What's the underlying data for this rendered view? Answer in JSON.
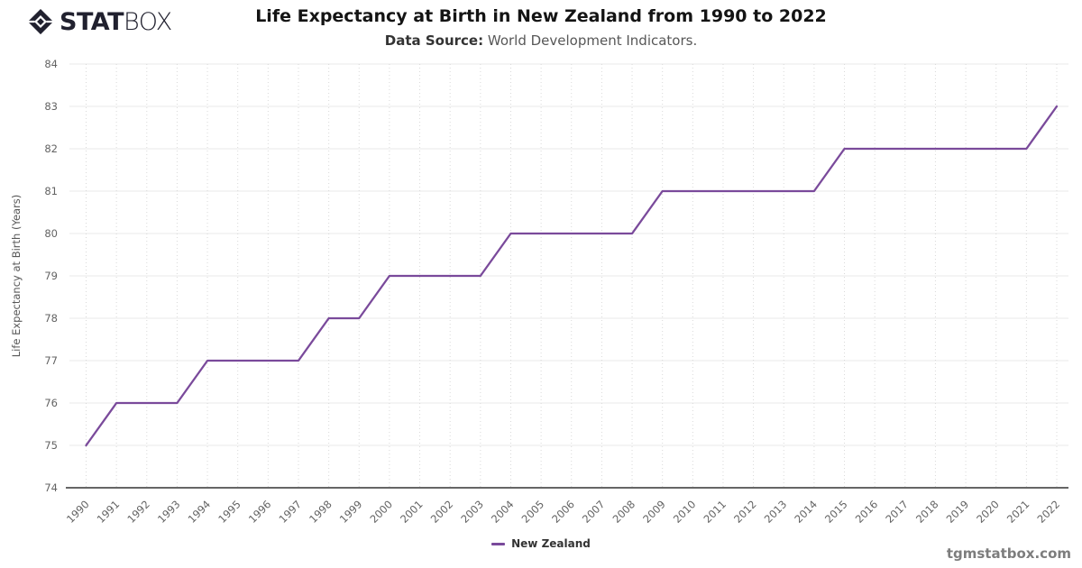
{
  "header": {
    "logo": {
      "stat": "STAT",
      "box": "BOX",
      "icon": "statbox-diamond-icon",
      "color": "#21212f"
    },
    "title": "Life Expectancy at Birth in New Zealand from 1990 to 2022",
    "subtitle_label": "Data Source:",
    "subtitle_text": " World Development Indicators."
  },
  "chart_data": {
    "type": "line",
    "title": "Life Expectancy at Birth in New Zealand from 1990 to 2022",
    "xlabel": "",
    "ylabel": "Life Expectancy at Birth (Years)",
    "x": [
      1990,
      1991,
      1992,
      1993,
      1994,
      1995,
      1996,
      1997,
      1998,
      1999,
      2000,
      2001,
      2002,
      2003,
      2004,
      2005,
      2006,
      2007,
      2008,
      2009,
      2010,
      2011,
      2012,
      2013,
      2014,
      2015,
      2016,
      2017,
      2018,
      2019,
      2020,
      2021,
      2022
    ],
    "series": [
      {
        "name": "New Zealand",
        "color": "#7a4a9b",
        "values": [
          75,
          76,
          76,
          76,
          77,
          77,
          77,
          77,
          78,
          78,
          79,
          79,
          79,
          79,
          80,
          80,
          80,
          80,
          80,
          81,
          81,
          81,
          81,
          81,
          81,
          82,
          82,
          82,
          82,
          82,
          82,
          82,
          83
        ]
      }
    ],
    "ylim": [
      74,
      84
    ],
    "ytick_step": 1,
    "grid": true,
    "legend_position": "bottom"
  },
  "style": {
    "grid_color": "#e8e8e8",
    "grid_dotted_color": "#d9d9d9",
    "axis_color": "#333333",
    "tick_text_color": "#636363",
    "axis_title_color": "#575757"
  },
  "footer": {
    "watermark": "tgmstatbox.com"
  }
}
